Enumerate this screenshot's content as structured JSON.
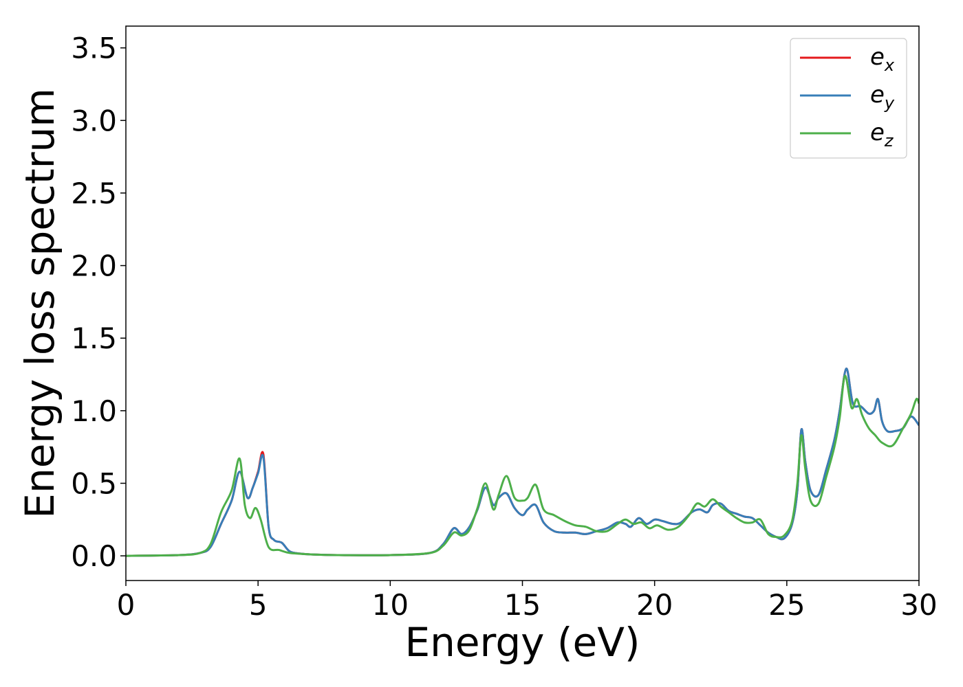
{
  "chart_data": {
    "type": "line",
    "title": "",
    "xlabel": "Energy (eV)",
    "ylabel": "Energy loss spectrum",
    "xlim": [
      0,
      30
    ],
    "ylim": [
      -0.17,
      3.65
    ],
    "xticks": [
      0,
      5,
      10,
      15,
      20,
      25,
      30
    ],
    "xtick_labels": [
      "0",
      "5",
      "10",
      "15",
      "20",
      "25",
      "30"
    ],
    "yticks": [
      0.0,
      0.5,
      1.0,
      1.5,
      2.0,
      2.5,
      3.0,
      3.5
    ],
    "ytick_labels": [
      "0.0",
      "0.5",
      "1.0",
      "1.5",
      "2.0",
      "2.5",
      "3.0",
      "3.5"
    ],
    "grid": false,
    "legend_position": "top-right",
    "series": [
      {
        "name": "e_x",
        "label_main": "e",
        "label_sub": "x",
        "color": "#e41a1c",
        "x": [
          0,
          2,
          2.8,
          3.2,
          3.6,
          4.0,
          4.3,
          4.6,
          4.8,
          5.0,
          5.2,
          5.4,
          5.6,
          5.9,
          6.2,
          6.6,
          7,
          8,
          10,
          11.5,
          12.0,
          12.4,
          12.7,
          13.0,
          13.3,
          13.6,
          13.9,
          14.1,
          14.4,
          14.7,
          15.0,
          15.2,
          15.5,
          15.8,
          16.2,
          16.6,
          17.0,
          17.4,
          17.8,
          18.2,
          18.6,
          18.9,
          19.1,
          19.4,
          19.7,
          20.0,
          20.3,
          20.7,
          21.0,
          21.4,
          21.7,
          22.0,
          22.2,
          22.5,
          22.8,
          23.1,
          23.4,
          23.7,
          24.0,
          24.3,
          24.6,
          24.9,
          25.2,
          25.4,
          25.55,
          25.7,
          25.9,
          26.2,
          26.5,
          26.8,
          27.0,
          27.25,
          27.5,
          27.8,
          28.1,
          28.3,
          28.45,
          28.6,
          28.8,
          29.1,
          29.4,
          29.7,
          30
        ],
        "y": [
          0,
          0.005,
          0.02,
          0.06,
          0.22,
          0.38,
          0.58,
          0.4,
          0.47,
          0.58,
          0.7,
          0.2,
          0.11,
          0.09,
          0.03,
          0.015,
          0.01,
          0.005,
          0.005,
          0.02,
          0.08,
          0.19,
          0.15,
          0.2,
          0.32,
          0.47,
          0.35,
          0.4,
          0.43,
          0.33,
          0.28,
          0.32,
          0.35,
          0.23,
          0.17,
          0.16,
          0.16,
          0.15,
          0.17,
          0.19,
          0.23,
          0.22,
          0.2,
          0.26,
          0.22,
          0.25,
          0.24,
          0.22,
          0.23,
          0.3,
          0.32,
          0.3,
          0.35,
          0.36,
          0.31,
          0.29,
          0.27,
          0.26,
          0.21,
          0.16,
          0.13,
          0.12,
          0.22,
          0.45,
          0.87,
          0.65,
          0.45,
          0.42,
          0.6,
          0.8,
          1.0,
          1.29,
          1.05,
          1.03,
          0.98,
          1.0,
          1.08,
          0.93,
          0.86,
          0.86,
          0.88,
          0.96,
          0.9
        ]
      },
      {
        "name": "e_y",
        "label_main": "e",
        "label_sub": "y",
        "color": "#377eb8",
        "x": [
          0,
          2,
          2.8,
          3.2,
          3.6,
          4.0,
          4.3,
          4.6,
          4.8,
          5.0,
          5.2,
          5.4,
          5.6,
          5.9,
          6.2,
          6.6,
          7,
          8,
          10,
          11.5,
          12.0,
          12.4,
          12.7,
          13.0,
          13.3,
          13.6,
          13.9,
          14.1,
          14.4,
          14.7,
          15.0,
          15.2,
          15.5,
          15.8,
          16.2,
          16.6,
          17.0,
          17.4,
          17.8,
          18.2,
          18.6,
          18.9,
          19.1,
          19.4,
          19.7,
          20.0,
          20.3,
          20.7,
          21.0,
          21.4,
          21.7,
          22.0,
          22.2,
          22.5,
          22.8,
          23.1,
          23.4,
          23.7,
          24.0,
          24.3,
          24.6,
          24.9,
          25.2,
          25.4,
          25.55,
          25.7,
          25.9,
          26.2,
          26.5,
          26.8,
          27.0,
          27.25,
          27.5,
          27.8,
          28.1,
          28.3,
          28.45,
          28.6,
          28.8,
          29.1,
          29.4,
          29.7,
          30
        ],
        "y": [
          0,
          0.005,
          0.02,
          0.06,
          0.22,
          0.38,
          0.58,
          0.4,
          0.47,
          0.57,
          0.68,
          0.2,
          0.11,
          0.09,
          0.03,
          0.015,
          0.01,
          0.005,
          0.005,
          0.02,
          0.08,
          0.19,
          0.15,
          0.2,
          0.32,
          0.47,
          0.35,
          0.4,
          0.43,
          0.33,
          0.28,
          0.32,
          0.35,
          0.23,
          0.17,
          0.16,
          0.16,
          0.15,
          0.17,
          0.19,
          0.23,
          0.22,
          0.2,
          0.26,
          0.22,
          0.25,
          0.24,
          0.22,
          0.23,
          0.3,
          0.32,
          0.3,
          0.35,
          0.36,
          0.31,
          0.29,
          0.27,
          0.26,
          0.21,
          0.16,
          0.13,
          0.12,
          0.22,
          0.45,
          0.87,
          0.65,
          0.45,
          0.42,
          0.6,
          0.8,
          1.0,
          1.29,
          1.05,
          1.03,
          0.98,
          1.0,
          1.08,
          0.93,
          0.86,
          0.86,
          0.88,
          0.96,
          0.9
        ]
      },
      {
        "name": "e_z",
        "label_main": "e",
        "label_sub": "z",
        "color": "#4daf4a",
        "x": [
          0,
          2,
          2.8,
          3.2,
          3.6,
          4.0,
          4.3,
          4.5,
          4.7,
          4.9,
          5.1,
          5.4,
          5.8,
          6.2,
          7,
          8,
          10,
          11.5,
          12.0,
          12.4,
          12.7,
          13.0,
          13.3,
          13.6,
          13.9,
          14.1,
          14.4,
          14.7,
          15.0,
          15.2,
          15.5,
          15.8,
          16.2,
          16.6,
          17.0,
          17.4,
          17.8,
          18.2,
          18.6,
          18.9,
          19.2,
          19.5,
          19.8,
          20.1,
          20.5,
          20.9,
          21.3,
          21.6,
          21.9,
          22.2,
          22.5,
          22.8,
          23.1,
          23.4,
          23.7,
          24.0,
          24.3,
          24.6,
          24.9,
          25.2,
          25.4,
          25.55,
          25.7,
          25.9,
          26.2,
          26.5,
          26.8,
          27.0,
          27.2,
          27.45,
          27.65,
          27.85,
          28.1,
          28.35,
          28.6,
          29.0,
          29.4,
          29.7,
          29.9,
          30
        ],
        "y": [
          0,
          0.005,
          0.02,
          0.08,
          0.3,
          0.45,
          0.67,
          0.35,
          0.26,
          0.33,
          0.25,
          0.06,
          0.04,
          0.02,
          0.01,
          0.005,
          0.005,
          0.02,
          0.07,
          0.16,
          0.14,
          0.18,
          0.33,
          0.5,
          0.32,
          0.42,
          0.55,
          0.4,
          0.38,
          0.4,
          0.49,
          0.32,
          0.28,
          0.24,
          0.21,
          0.2,
          0.17,
          0.17,
          0.22,
          0.25,
          0.22,
          0.23,
          0.19,
          0.21,
          0.18,
          0.2,
          0.28,
          0.36,
          0.34,
          0.39,
          0.34,
          0.3,
          0.26,
          0.23,
          0.23,
          0.25,
          0.15,
          0.13,
          0.14,
          0.24,
          0.5,
          0.83,
          0.6,
          0.38,
          0.36,
          0.55,
          0.75,
          0.95,
          1.24,
          1.02,
          1.08,
          0.97,
          0.88,
          0.83,
          0.78,
          0.76,
          0.88,
          0.98,
          1.08,
          1.05
        ]
      }
    ]
  }
}
